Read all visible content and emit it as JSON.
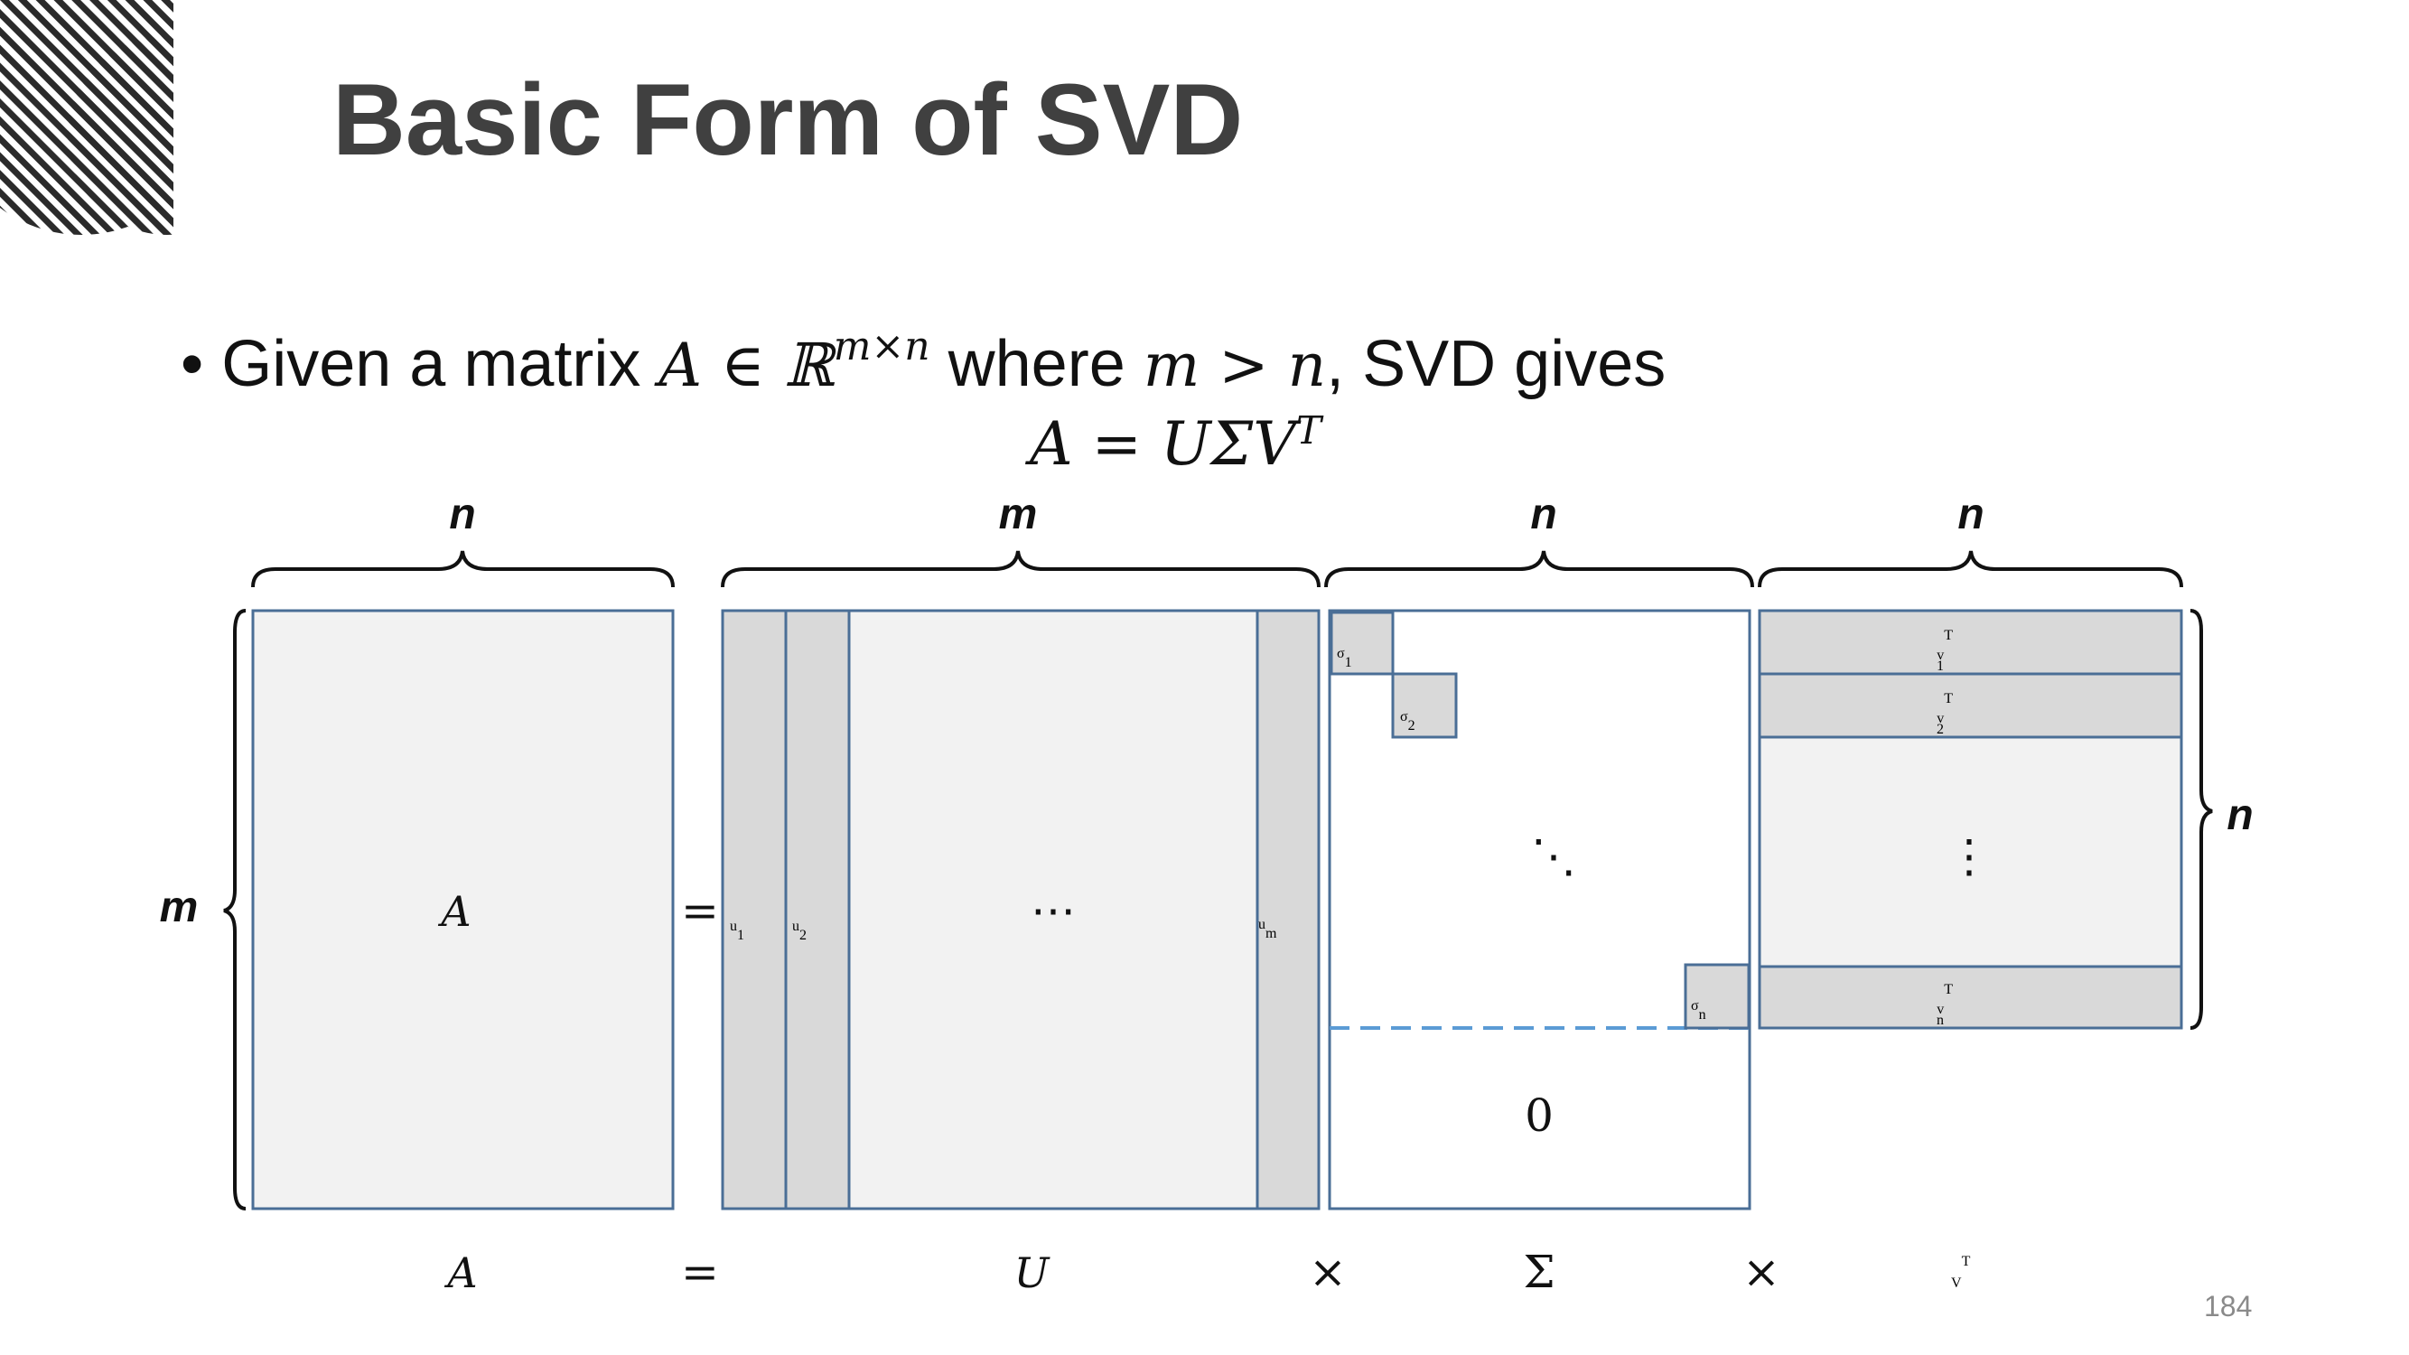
{
  "slide": {
    "title": "Basic Form of SVD",
    "bullet": {
      "prefix": "• Given a matrix ",
      "math1": "A ∈ ℝ",
      "math1_sup": "m×n",
      "mid": " where ",
      "math2": "m > n",
      "suffix": ", SVD gives"
    },
    "equation": {
      "text": "A = UΣV",
      "sup": "T"
    },
    "page_number": "184"
  },
  "diagram": {
    "dims": {
      "A_width": "n",
      "A_height": "m",
      "U_width": "m",
      "Sigma_width": "n",
      "Vt_width": "n",
      "Vt_height": "n"
    },
    "A_label": "A",
    "equals_sign": "=",
    "U_columns": {
      "u1": "u",
      "u1_sub": "1",
      "u2": "u",
      "u2_sub": "2",
      "dots": "⋯",
      "um": "u",
      "um_sub": "m"
    },
    "Sigma": {
      "s1": "σ",
      "s1_sub": "1",
      "s2": "σ",
      "s2_sub": "2",
      "diag_dots": "⋱",
      "sn": "σ",
      "sn_sub": "n",
      "zero": "0"
    },
    "Vt_rows": {
      "v1": "v",
      "v1_sub": "1",
      "v1_sup": "T",
      "v2": "v",
      "v2_sub": "2",
      "v2_sup": "T",
      "vdots": "⋮",
      "vn": "v",
      "vn_sub": "n",
      "vn_sup": "T"
    },
    "bottom_labels": {
      "A": "A",
      "eq": "=",
      "U": "U",
      "times1": "×",
      "Sigma": "Σ",
      "times2": "×",
      "Vt": "V",
      "Vt_sup": "T"
    }
  },
  "colors": {
    "title": "#404040",
    "box_fill": "#f2f2f2",
    "col_fill": "#d9d9d9",
    "stroke": "#4a6e96",
    "dashed": "#5b9bd5"
  }
}
